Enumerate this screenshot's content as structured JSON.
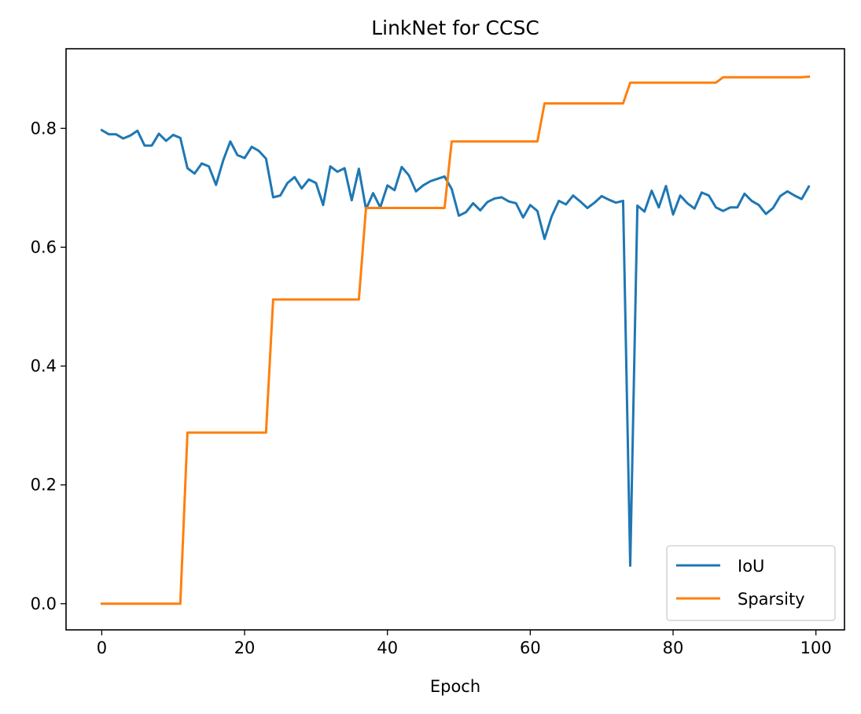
{
  "chart_data": {
    "type": "line",
    "title": "LinkNet for CCSC",
    "xlabel": "Epoch",
    "ylabel": "",
    "xlim": [
      -5,
      104
    ],
    "ylim": [
      -0.044,
      0.934
    ],
    "xticks": [
      0,
      20,
      40,
      60,
      80,
      100
    ],
    "xtick_labels": [
      "0",
      "20",
      "40",
      "60",
      "80",
      "100"
    ],
    "yticks": [
      0.0,
      0.2,
      0.4,
      0.6,
      0.8
    ],
    "ytick_labels": [
      "0.0",
      "0.2",
      "0.4",
      "0.6",
      "0.8"
    ],
    "grid": false,
    "legend_position": "lower right",
    "x": [
      0,
      1,
      2,
      3,
      4,
      5,
      6,
      7,
      8,
      9,
      10,
      11,
      12,
      13,
      14,
      15,
      16,
      17,
      18,
      19,
      20,
      21,
      22,
      23,
      24,
      25,
      26,
      27,
      28,
      29,
      30,
      31,
      32,
      33,
      34,
      35,
      36,
      37,
      38,
      39,
      40,
      41,
      42,
      43,
      44,
      45,
      46,
      47,
      48,
      49,
      50,
      51,
      52,
      53,
      54,
      55,
      56,
      57,
      58,
      59,
      60,
      61,
      62,
      63,
      64,
      65,
      66,
      67,
      68,
      69,
      70,
      71,
      72,
      73,
      74,
      75,
      76,
      77,
      78,
      79,
      80,
      81,
      82,
      83,
      84,
      85,
      86,
      87,
      88,
      89,
      90,
      91,
      92,
      93,
      94,
      95,
      96,
      97,
      98,
      99
    ],
    "series": [
      {
        "name": "IoU",
        "color": "#1f77b4",
        "values": [
          0.797,
          0.79,
          0.79,
          0.783,
          0.788,
          0.796,
          0.771,
          0.771,
          0.791,
          0.779,
          0.789,
          0.784,
          0.733,
          0.724,
          0.741,
          0.736,
          0.705,
          0.746,
          0.778,
          0.755,
          0.75,
          0.769,
          0.762,
          0.749,
          0.684,
          0.687,
          0.708,
          0.718,
          0.699,
          0.714,
          0.708,
          0.671,
          0.736,
          0.727,
          0.733,
          0.679,
          0.732,
          0.664,
          0.691,
          0.667,
          0.704,
          0.696,
          0.735,
          0.721,
          0.694,
          0.704,
          0.711,
          0.715,
          0.719,
          0.698,
          0.653,
          0.659,
          0.674,
          0.662,
          0.676,
          0.682,
          0.684,
          0.677,
          0.674,
          0.65,
          0.671,
          0.661,
          0.614,
          0.652,
          0.678,
          0.672,
          0.687,
          0.677,
          0.666,
          0.675,
          0.686,
          0.68,
          0.675,
          0.678,
          0.064,
          0.67,
          0.66,
          0.695,
          0.667,
          0.703,
          0.655,
          0.687,
          0.674,
          0.665,
          0.692,
          0.687,
          0.667,
          0.661,
          0.667,
          0.667,
          0.69,
          0.678,
          0.671,
          0.656,
          0.666,
          0.686,
          0.694,
          0.687,
          0.681,
          0.702
        ]
      },
      {
        "name": "Sparsity",
        "color": "#ff7f0e",
        "values": [
          0,
          0,
          0,
          0,
          0,
          0,
          0,
          0,
          0,
          0,
          0,
          0,
          0.288,
          0.288,
          0.288,
          0.288,
          0.288,
          0.288,
          0.288,
          0.288,
          0.288,
          0.288,
          0.288,
          0.288,
          0.512,
          0.512,
          0.512,
          0.512,
          0.512,
          0.512,
          0.512,
          0.512,
          0.512,
          0.512,
          0.512,
          0.512,
          0.512,
          0.666,
          0.666,
          0.666,
          0.666,
          0.666,
          0.666,
          0.666,
          0.666,
          0.666,
          0.666,
          0.666,
          0.666,
          0.778,
          0.778,
          0.778,
          0.778,
          0.778,
          0.778,
          0.778,
          0.778,
          0.778,
          0.778,
          0.778,
          0.778,
          0.778,
          0.842,
          0.842,
          0.842,
          0.842,
          0.842,
          0.842,
          0.842,
          0.842,
          0.842,
          0.842,
          0.842,
          0.842,
          0.877,
          0.877,
          0.877,
          0.877,
          0.877,
          0.877,
          0.877,
          0.877,
          0.877,
          0.877,
          0.877,
          0.877,
          0.877,
          0.886,
          0.886,
          0.886,
          0.886,
          0.886,
          0.886,
          0.886,
          0.886,
          0.886,
          0.886,
          0.886,
          0.886,
          0.887
        ]
      }
    ]
  }
}
